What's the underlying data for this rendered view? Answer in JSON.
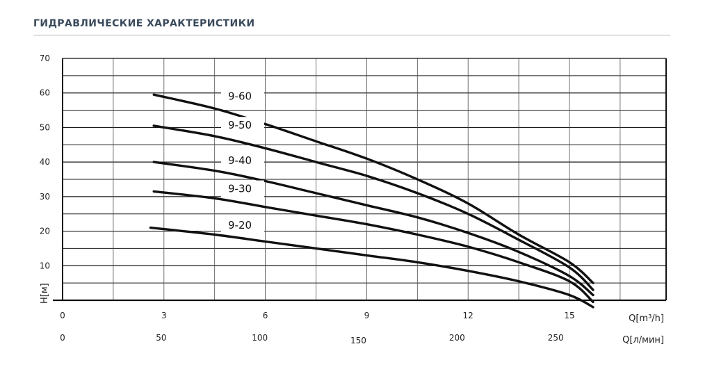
{
  "header": {
    "title": "ГИДРАВЛИЧЕСКИЕ ХАРАКТЕРИСТИКИ"
  },
  "chart_data": {
    "type": "line",
    "title": "ГИДРАВЛИЧЕСКИЕ ХАРАКТЕРИСТИКИ",
    "ylabel": "H[м]",
    "xlabel": "Q[m³/h]",
    "xlabel_secondary": "Q[л/мин]",
    "ylim": [
      0,
      70
    ],
    "y_ticks": [
      10,
      20,
      30,
      40,
      50,
      60,
      70
    ],
    "xlim": [
      0,
      18
    ],
    "x_ticks": [
      {
        "value": 0,
        "label": "0"
      },
      {
        "value": 3,
        "label": "3"
      },
      {
        "value": 6,
        "label": "6"
      },
      {
        "value": 9,
        "label": "9"
      },
      {
        "value": 12,
        "label": "12"
      },
      {
        "value": 15,
        "label": "15"
      }
    ],
    "x_ticks_secondary": [
      {
        "value": 0,
        "label": "0"
      },
      {
        "value": 50,
        "label": "50"
      },
      {
        "value": 100,
        "label": "100"
      },
      {
        "value": 150,
        "label": "150"
      },
      {
        "value": 200,
        "label": "200"
      },
      {
        "value": 250,
        "label": "250"
      }
    ],
    "grid": true,
    "series": [
      {
        "name": "9-60",
        "x": [
          2.7,
          4.5,
          6,
          7.5,
          9,
          10.5,
          12,
          13.5,
          15,
          15.7
        ],
        "y": [
          59.5,
          55.5,
          51,
          46,
          41,
          35,
          28,
          19,
          11,
          5
        ]
      },
      {
        "name": "9-50",
        "x": [
          2.7,
          4.5,
          6,
          7.5,
          9,
          10.5,
          12,
          13.5,
          15,
          15.7
        ],
        "y": [
          50.5,
          47.5,
          44,
          40,
          36,
          31,
          25,
          17.5,
          9.5,
          3
        ]
      },
      {
        "name": "9-40",
        "x": [
          2.7,
          4.5,
          6,
          7.5,
          9,
          10.5,
          12,
          13.5,
          15,
          15.7
        ],
        "y": [
          40,
          37.5,
          34.5,
          31,
          27.5,
          24,
          19.5,
          14,
          7,
          1.5
        ]
      },
      {
        "name": "9-30",
        "x": [
          2.7,
          4.5,
          6,
          7.5,
          9,
          10.5,
          12,
          13.5,
          15,
          15.7
        ],
        "y": [
          31.5,
          29.5,
          27,
          24.5,
          22,
          19,
          15.5,
          11,
          5.5,
          -0.5
        ]
      },
      {
        "name": "9-20",
        "x": [
          2.6,
          4.5,
          6,
          7.5,
          9,
          10.5,
          12,
          13.5,
          15,
          15.7
        ],
        "y": [
          21,
          19,
          17,
          15,
          13,
          11,
          8.5,
          5.5,
          1.5,
          -2
        ]
      }
    ]
  }
}
